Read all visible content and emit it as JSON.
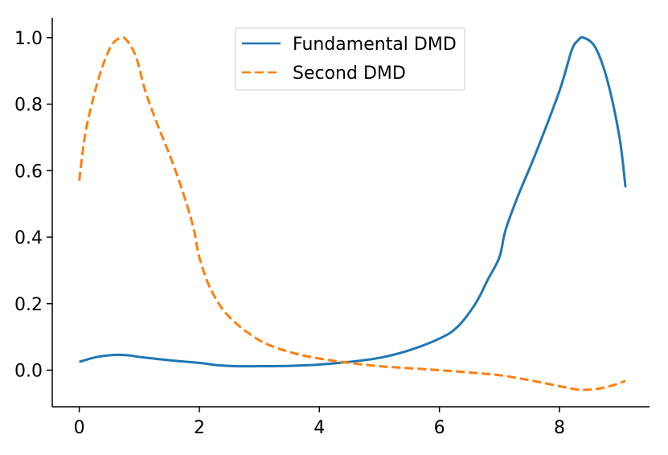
{
  "chart_data": {
    "type": "line",
    "title": "",
    "xlabel": "",
    "ylabel": "",
    "xlim": [
      -0.45,
      9.5
    ],
    "ylim": [
      -0.11,
      1.06
    ],
    "xticks": [
      0,
      2,
      4,
      6,
      8
    ],
    "xtick_labels": [
      "0",
      "2",
      "4",
      "6",
      "8"
    ],
    "yticks": [
      0.0,
      0.2,
      0.4,
      0.6,
      0.8,
      1.0
    ],
    "ytick_labels": [
      "0.0",
      "0.2",
      "0.4",
      "0.6",
      "0.8",
      "1.0"
    ],
    "grid": false,
    "legend": {
      "placement": "top-center",
      "entries": [
        "Fundamental DMD",
        "Second DMD"
      ]
    },
    "series": [
      {
        "name": "Fundamental DMD",
        "color": "#1f77b4",
        "dash": "solid",
        "x": [
          0,
          0.3,
          0.6,
          0.8,
          1.0,
          1.5,
          2.0,
          2.3,
          2.6,
          3.0,
          3.5,
          4.0,
          4.5,
          5.0,
          5.5,
          6.0,
          6.3,
          6.6,
          6.8,
          7.0,
          7.1,
          7.3,
          7.6,
          8.0,
          8.2,
          8.3,
          8.4,
          8.6,
          8.8,
          9.0,
          9.1
        ],
        "y": [
          0.025,
          0.04,
          0.046,
          0.045,
          0.04,
          0.03,
          0.022,
          0.015,
          0.012,
          0.012,
          0.013,
          0.017,
          0.025,
          0.037,
          0.06,
          0.095,
          0.13,
          0.2,
          0.27,
          0.34,
          0.42,
          0.52,
          0.65,
          0.84,
          0.96,
          0.99,
          1.0,
          0.97,
          0.87,
          0.7,
          0.55
        ]
      },
      {
        "name": "Second DMD",
        "color": "#ff7f0e",
        "dash": "dashed",
        "x": [
          0,
          0.1,
          0.25,
          0.4,
          0.55,
          0.7,
          0.8,
          0.95,
          1.1,
          1.3,
          1.5,
          1.7,
          1.9,
          2.0,
          2.2,
          2.5,
          3.0,
          3.5,
          4.0,
          4.5,
          5.0,
          5.5,
          6.0,
          6.5,
          7.0,
          7.5,
          8.0,
          8.3,
          8.6,
          8.9,
          9.1
        ],
        "y": [
          0.57,
          0.71,
          0.83,
          0.92,
          0.98,
          1.0,
          0.99,
          0.94,
          0.84,
          0.74,
          0.65,
          0.55,
          0.43,
          0.34,
          0.24,
          0.16,
          0.09,
          0.055,
          0.035,
          0.022,
          0.012,
          0.006,
          0.0,
          -0.007,
          -0.015,
          -0.03,
          -0.048,
          -0.058,
          -0.057,
          -0.045,
          -0.032
        ]
      }
    ]
  }
}
